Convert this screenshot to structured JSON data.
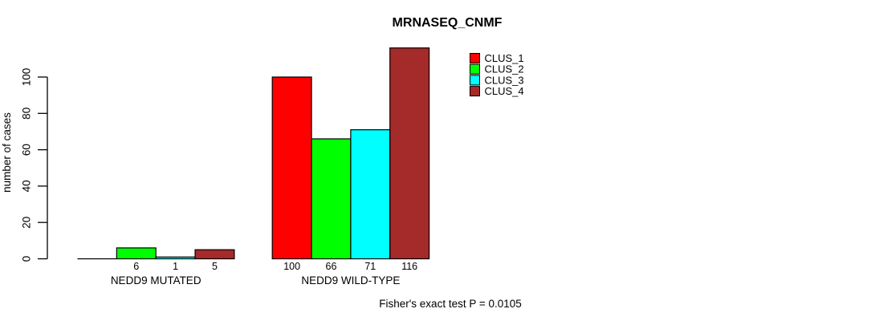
{
  "page": {
    "background_color": "#ffffff",
    "text_color": "#000000",
    "axis_color": "#000000"
  },
  "chart_data": {
    "type": "bar",
    "title": "MRNASEQ_CNMF",
    "ylabel": "number of cases",
    "xlabel": "",
    "footnote": "Fisher's exact test P = 0.0105",
    "categories": [
      "NEDD9 MUTATED",
      "NEDD9 WILD-TYPE"
    ],
    "series": [
      {
        "name": "CLUS_1",
        "color": "#FF0000",
        "values": [
          0,
          100
        ]
      },
      {
        "name": "CLUS_2",
        "color": "#00FF00",
        "values": [
          6,
          66
        ]
      },
      {
        "name": "CLUS_3",
        "color": "#00FFFF",
        "values": [
          1,
          71
        ]
      },
      {
        "name": "CLUS_4",
        "color": "#A52A2A",
        "values": [
          5,
          116
        ]
      }
    ],
    "bar_value_labels": [
      [
        "",
        "6",
        "1",
        "5"
      ],
      [
        "100",
        "66",
        "71",
        "116"
      ]
    ],
    "yticks": [
      0,
      20,
      40,
      60,
      80,
      100
    ],
    "ylim": [
      0,
      116
    ],
    "grid": false,
    "legend": {
      "position": "top-right-of-plot",
      "entries": [
        "CLUS_1",
        "CLUS_2",
        "CLUS_3",
        "CLUS_4"
      ]
    }
  }
}
